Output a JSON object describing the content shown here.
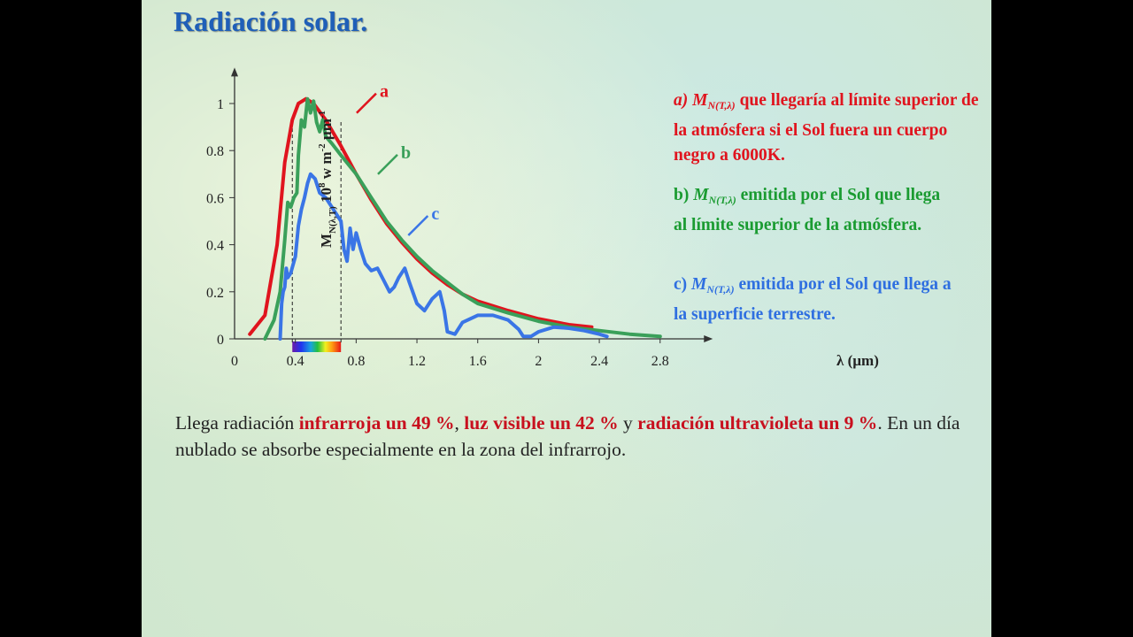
{
  "slide": {
    "title": "Radiación solar.",
    "legend": {
      "a": {
        "prefix": "a) ",
        "symbol": "M",
        "sub": "N(T,λ)",
        "text": " que llegaría al límite superior de la atmósfera si el Sol fuera un cuerpo negro a 6000K.",
        "color": "#e0141e"
      },
      "b": {
        "prefix": "b) ",
        "symbol": "M",
        "sub": "N(T,λ)",
        "text": " emitida por el Sol que llega al límite superior de la atmósfera.",
        "color": "#1a9b31"
      },
      "c": {
        "prefix": "c) ",
        "symbol": "M",
        "sub": "N(T,λ)",
        "text": " emitida por el Sol que llega a la superficie terrestre.",
        "color": "#2f6fe0"
      }
    },
    "summary": {
      "t1": "Llega radiación ",
      "e1": "infrarroja un 49 %",
      "t2": ", ",
      "e2": "luz visible un 42 %",
      "t3": " y ",
      "e3": "radiación ultravioleta un 9 %",
      "t4": ". En un día nublado se absorbe especialmente en la zona del infrarrojo."
    }
  },
  "chart_data": {
    "type": "line",
    "title": "",
    "xlabel": "λ (µm)",
    "ylabel": "M",
    "ylabel_sub": "N(λ,T)",
    "ylabel_rest": " 10",
    "ylabel_exp": "8",
    "ylabel_units": " w m",
    "ylabel_exp2": "-2",
    "ylabel_units2": " µm",
    "ylabel_exp3": "-1",
    "x_origin_label": "0",
    "xlim": [
      0,
      3.1
    ],
    "ylim": [
      0,
      1.1
    ],
    "xticks": [
      {
        "v": 0.4,
        "label": "0.4"
      },
      {
        "v": 0.8,
        "label": "0.8"
      },
      {
        "v": 1.2,
        "label": "1.2"
      },
      {
        "v": 1.6,
        "label": "1.6"
      },
      {
        "v": 2.0,
        "label": "2"
      },
      {
        "v": 2.4,
        "label": "2.4"
      },
      {
        "v": 2.8,
        "label": "2.8"
      }
    ],
    "yticks": [
      {
        "v": 0,
        "label": "0"
      },
      {
        "v": 0.2,
        "label": "0.2"
      },
      {
        "v": 0.4,
        "label": "0.4"
      },
      {
        "v": 0.6,
        "label": "0.6"
      },
      {
        "v": 0.8,
        "label": "0.8"
      },
      {
        "v": 1,
        "label": "1"
      }
    ],
    "visible_band": [
      0.38,
      0.7
    ],
    "dashed_lines": [
      0.38,
      0.7
    ],
    "series": [
      {
        "id": "a",
        "name": "a",
        "color": "#e0141e",
        "label_at": [
          0.85,
          1.02
        ],
        "points": [
          [
            0.1,
            0.02
          ],
          [
            0.2,
            0.1
          ],
          [
            0.28,
            0.4
          ],
          [
            0.33,
            0.75
          ],
          [
            0.38,
            0.93
          ],
          [
            0.42,
            1.0
          ],
          [
            0.47,
            1.02
          ],
          [
            0.52,
            1.0
          ],
          [
            0.6,
            0.93
          ],
          [
            0.7,
            0.82
          ],
          [
            0.8,
            0.7
          ],
          [
            0.9,
            0.59
          ],
          [
            1.0,
            0.49
          ],
          [
            1.1,
            0.41
          ],
          [
            1.2,
            0.34
          ],
          [
            1.3,
            0.28
          ],
          [
            1.4,
            0.23
          ],
          [
            1.5,
            0.19
          ],
          [
            1.6,
            0.16
          ],
          [
            1.8,
            0.12
          ],
          [
            2.0,
            0.085
          ],
          [
            2.2,
            0.06
          ],
          [
            2.35,
            0.05
          ]
        ]
      },
      {
        "id": "b",
        "name": "b",
        "color": "#3aa05a",
        "label_at": [
          0.99,
          0.76
        ],
        "points": [
          [
            0.2,
            0.0
          ],
          [
            0.26,
            0.08
          ],
          [
            0.3,
            0.2
          ],
          [
            0.33,
            0.42
          ],
          [
            0.35,
            0.58
          ],
          [
            0.37,
            0.56
          ],
          [
            0.39,
            0.6
          ],
          [
            0.41,
            0.62
          ],
          [
            0.42,
            0.78
          ],
          [
            0.44,
            0.93
          ],
          [
            0.46,
            0.9
          ],
          [
            0.48,
            1.02
          ],
          [
            0.5,
            0.96
          ],
          [
            0.52,
            1.01
          ],
          [
            0.54,
            0.92
          ],
          [
            0.56,
            0.88
          ],
          [
            0.58,
            0.93
          ],
          [
            0.6,
            0.86
          ],
          [
            0.64,
            0.83
          ],
          [
            0.7,
            0.78
          ],
          [
            0.8,
            0.7
          ],
          [
            0.9,
            0.6
          ],
          [
            1.0,
            0.5
          ],
          [
            1.1,
            0.42
          ],
          [
            1.2,
            0.35
          ],
          [
            1.3,
            0.29
          ],
          [
            1.4,
            0.24
          ],
          [
            1.5,
            0.19
          ],
          [
            1.6,
            0.15
          ],
          [
            1.8,
            0.11
          ],
          [
            2.0,
            0.075
          ],
          [
            2.2,
            0.05
          ],
          [
            2.4,
            0.035
          ],
          [
            2.6,
            0.02
          ],
          [
            2.8,
            0.01
          ]
        ]
      },
      {
        "id": "c",
        "name": "c",
        "color": "#3a75e6",
        "label_at": [
          1.19,
          0.5
        ],
        "points": [
          [
            0.3,
            0.0
          ],
          [
            0.31,
            0.15
          ],
          [
            0.32,
            0.2
          ],
          [
            0.33,
            0.22
          ],
          [
            0.34,
            0.3
          ],
          [
            0.35,
            0.26
          ],
          [
            0.37,
            0.28
          ],
          [
            0.4,
            0.35
          ],
          [
            0.42,
            0.48
          ],
          [
            0.44,
            0.55
          ],
          [
            0.46,
            0.6
          ],
          [
            0.48,
            0.66
          ],
          [
            0.5,
            0.7
          ],
          [
            0.53,
            0.68
          ],
          [
            0.56,
            0.62
          ],
          [
            0.6,
            0.6
          ],
          [
            0.65,
            0.55
          ],
          [
            0.7,
            0.5
          ],
          [
            0.72,
            0.38
          ],
          [
            0.74,
            0.33
          ],
          [
            0.76,
            0.47
          ],
          [
            0.78,
            0.38
          ],
          [
            0.8,
            0.45
          ],
          [
            0.83,
            0.38
          ],
          [
            0.86,
            0.32
          ],
          [
            0.9,
            0.29
          ],
          [
            0.94,
            0.3
          ],
          [
            0.98,
            0.25
          ],
          [
            1.02,
            0.2
          ],
          [
            1.05,
            0.22
          ],
          [
            1.08,
            0.26
          ],
          [
            1.12,
            0.3
          ],
          [
            1.15,
            0.24
          ],
          [
            1.2,
            0.15
          ],
          [
            1.25,
            0.12
          ],
          [
            1.3,
            0.17
          ],
          [
            1.35,
            0.2
          ],
          [
            1.38,
            0.12
          ],
          [
            1.4,
            0.03
          ],
          [
            1.45,
            0.02
          ],
          [
            1.5,
            0.07
          ],
          [
            1.6,
            0.1
          ],
          [
            1.7,
            0.1
          ],
          [
            1.8,
            0.08
          ],
          [
            1.87,
            0.04
          ],
          [
            1.9,
            0.01
          ],
          [
            1.95,
            0.01
          ],
          [
            2.0,
            0.03
          ],
          [
            2.1,
            0.05
          ],
          [
            2.2,
            0.045
          ],
          [
            2.3,
            0.035
          ],
          [
            2.4,
            0.02
          ],
          [
            2.45,
            0.01
          ]
        ]
      }
    ]
  }
}
